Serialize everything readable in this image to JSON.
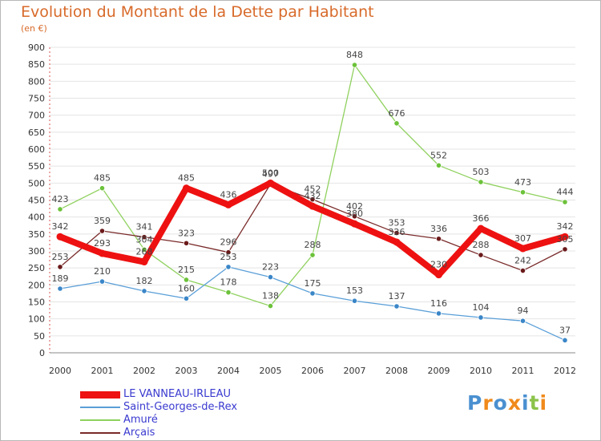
{
  "title": "Evolution du Montant de la Dette par Habitant",
  "unit": "(en €)",
  "logo": {
    "text": "Proxiti",
    "colors": [
      "#4a90d0",
      "#f08a1c",
      "#4a90d0",
      "#f08a1c",
      "#4a90d0",
      "#8bc34a",
      "#f08a1c"
    ]
  },
  "chart_data": {
    "type": "line",
    "title": "Evolution du Montant de la Dette par Habitant",
    "subtitle": "(en €)",
    "xlabel": "",
    "ylabel": "",
    "x": [
      "2000",
      "2001",
      "2002",
      "2003",
      "2004",
      "2005",
      "2006",
      "2007",
      "2008",
      "2009",
      "2010",
      "2011",
      "2012"
    ],
    "ylim": [
      0,
      900
    ],
    "yticks": [
      "0",
      "50",
      "100",
      "150",
      "200",
      "250",
      "300",
      "350",
      "400",
      "450",
      "500",
      "550",
      "600",
      "650",
      "700",
      "750",
      "800",
      "850",
      "900"
    ],
    "grid": "horizontal",
    "legend_position": "bottom-left",
    "series": [
      {
        "name": "Amuré",
        "color": "#8fd15e",
        "marker": "#6cc23a",
        "width": 1.3,
        "values": [
          423,
          485,
          304,
          215,
          178,
          138,
          288,
          848,
          676,
          552,
          503,
          473,
          444
        ]
      },
      {
        "name": "Saint-Georges-de-Rex",
        "color": "#5a9fd8",
        "marker": "#3a86c8",
        "width": 1.3,
        "values": [
          189,
          210,
          182,
          160,
          253,
          223,
          175,
          153,
          137,
          116,
          104,
          94,
          37
        ]
      },
      {
        "name": "Arçais",
        "color": "#7a2a2a",
        "marker": "#6b1a1a",
        "width": 1.3,
        "values": [
          253,
          359,
          341,
          323,
          296,
          497,
          452,
          402,
          353,
          336,
          288,
          242,
          305
        ]
      },
      {
        "name": "LE VANNEAU-IRLEAU",
        "color": "#ee1111",
        "marker": "#ee1111",
        "width": 8,
        "values": [
          342,
          293,
          268,
          485,
          436,
          500,
          432,
          380,
          326,
          230,
          366,
          307,
          342
        ]
      }
    ]
  }
}
